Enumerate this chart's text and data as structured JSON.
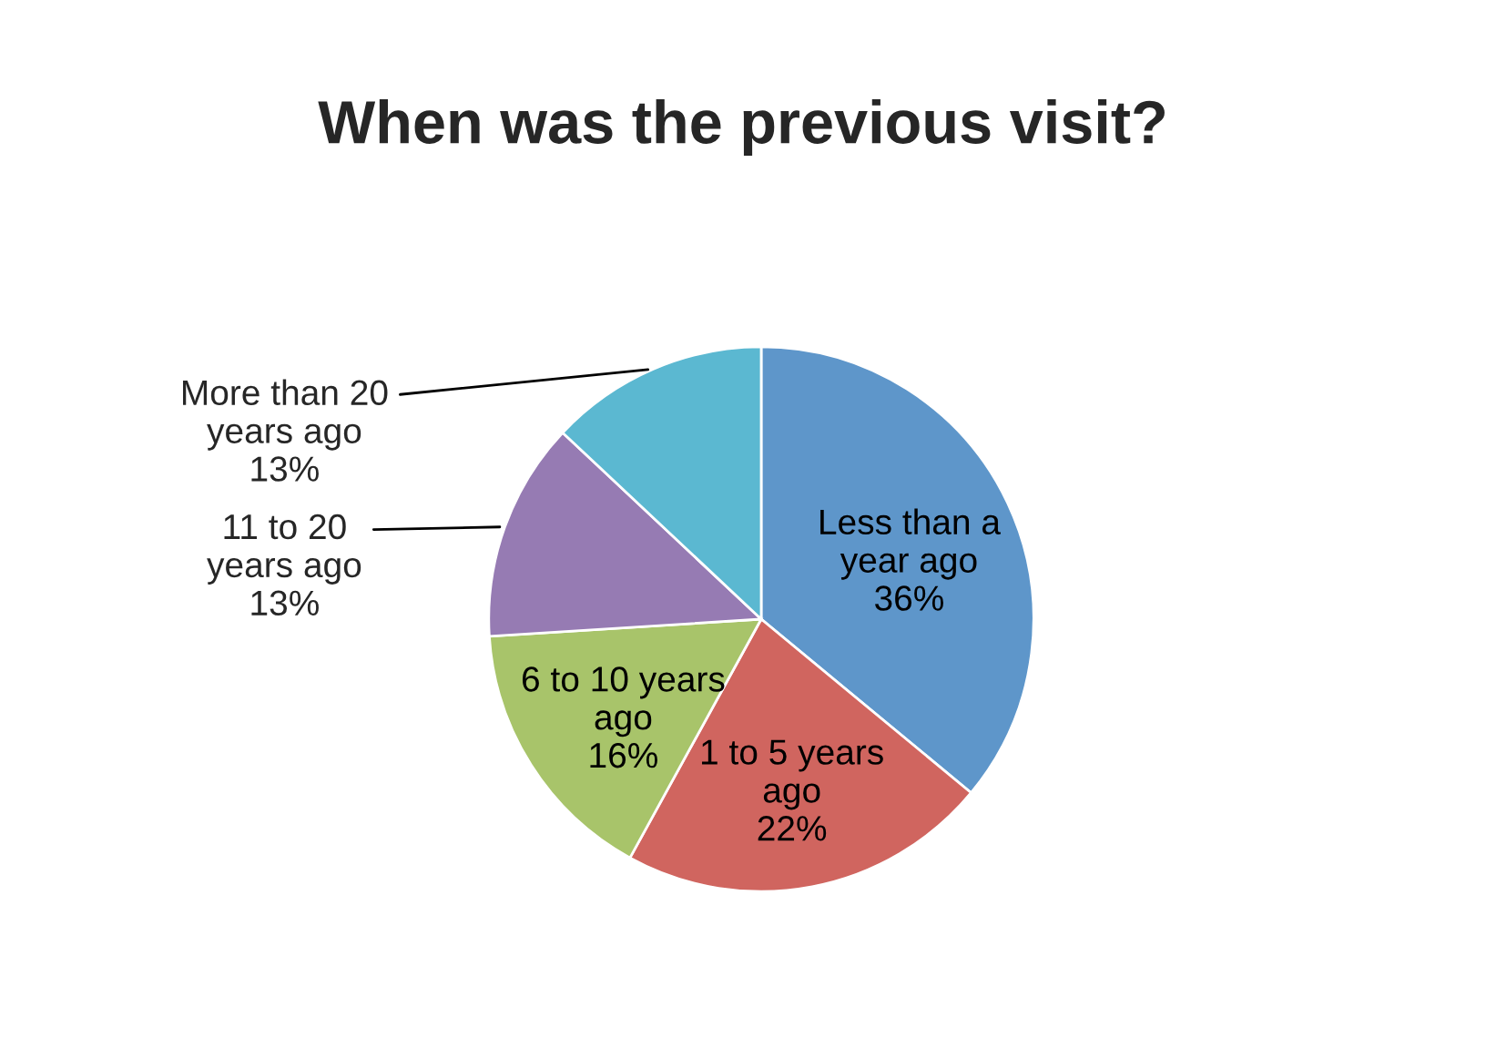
{
  "chart_data": {
    "type": "pie",
    "title": "When was the previous visit?",
    "categories": [
      "Less than a year ago",
      "1 to 5 years ago",
      "6 to 10 years ago",
      "11 to 20 years ago",
      "More than 20 years ago"
    ],
    "values": [
      36,
      22,
      16,
      13,
      13
    ],
    "value_labels": [
      "36%",
      "22%",
      "16%",
      "13%",
      "13%"
    ],
    "colors": [
      "#5e96ca",
      "#d0655f",
      "#a8c46a",
      "#967bb3",
      "#5bb8d1"
    ],
    "legend": false
  }
}
